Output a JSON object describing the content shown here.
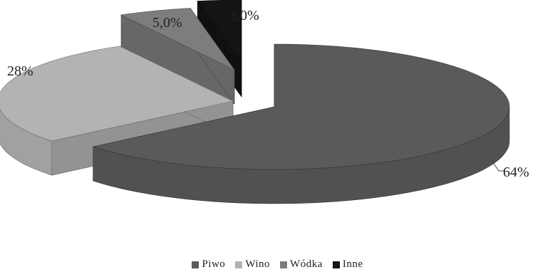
{
  "chart_data": {
    "type": "pie",
    "style": "3d-exploded",
    "categories": [
      "Piwo",
      "Wino",
      "Wódka",
      "Inne"
    ],
    "values": [
      64,
      28,
      5,
      3
    ],
    "labels": [
      "64%",
      "28%",
      "5,0%",
      "3,0%"
    ],
    "colors": [
      "#5a5a5a",
      "#b3b3b3",
      "#7d7d7d",
      "#141414"
    ],
    "legend_position": "bottom",
    "title": ""
  }
}
